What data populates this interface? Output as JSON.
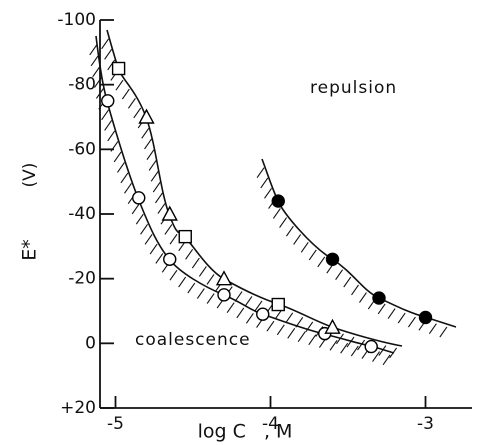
{
  "chart_data": {
    "type": "scatter",
    "xlabel": "log C   , M",
    "ylabel": "E*",
    "ylabel_unit": "(V)",
    "annotations": [
      "repulsion",
      "coalescence"
    ],
    "xlim": [
      -5.1,
      -2.7
    ],
    "ylim": [
      20,
      -100
    ],
    "xticks": [
      -5,
      -4,
      -3
    ],
    "yticks": [
      -100,
      -80,
      -60,
      -40,
      -20,
      0,
      {
        "value": 20,
        "label": "+20"
      }
    ],
    "color": "#000000",
    "series": [
      {
        "marker": "circle",
        "filled": false,
        "x": [
          -5.05,
          -4.85,
          -4.65,
          -4.3,
          -4.05,
          -3.65,
          -3.35
        ],
        "values": [
          -75,
          -45,
          -26,
          -15,
          -9,
          -3,
          1
        ]
      },
      {
        "marker": "square",
        "filled": false,
        "x": [
          -4.98,
          -4.55,
          -3.95
        ],
        "values": [
          -85,
          -33,
          -12
        ]
      },
      {
        "marker": "triangle",
        "filled": false,
        "x": [
          -4.8,
          -4.65,
          -4.3,
          -3.6
        ],
        "values": [
          -70,
          -40,
          -20,
          -5
        ]
      },
      {
        "marker": "circle",
        "filled": true,
        "x": [
          -3.95,
          -3.6,
          -3.3,
          -3.0
        ],
        "values": [
          -44,
          -26,
          -14,
          -8
        ]
      }
    ]
  }
}
